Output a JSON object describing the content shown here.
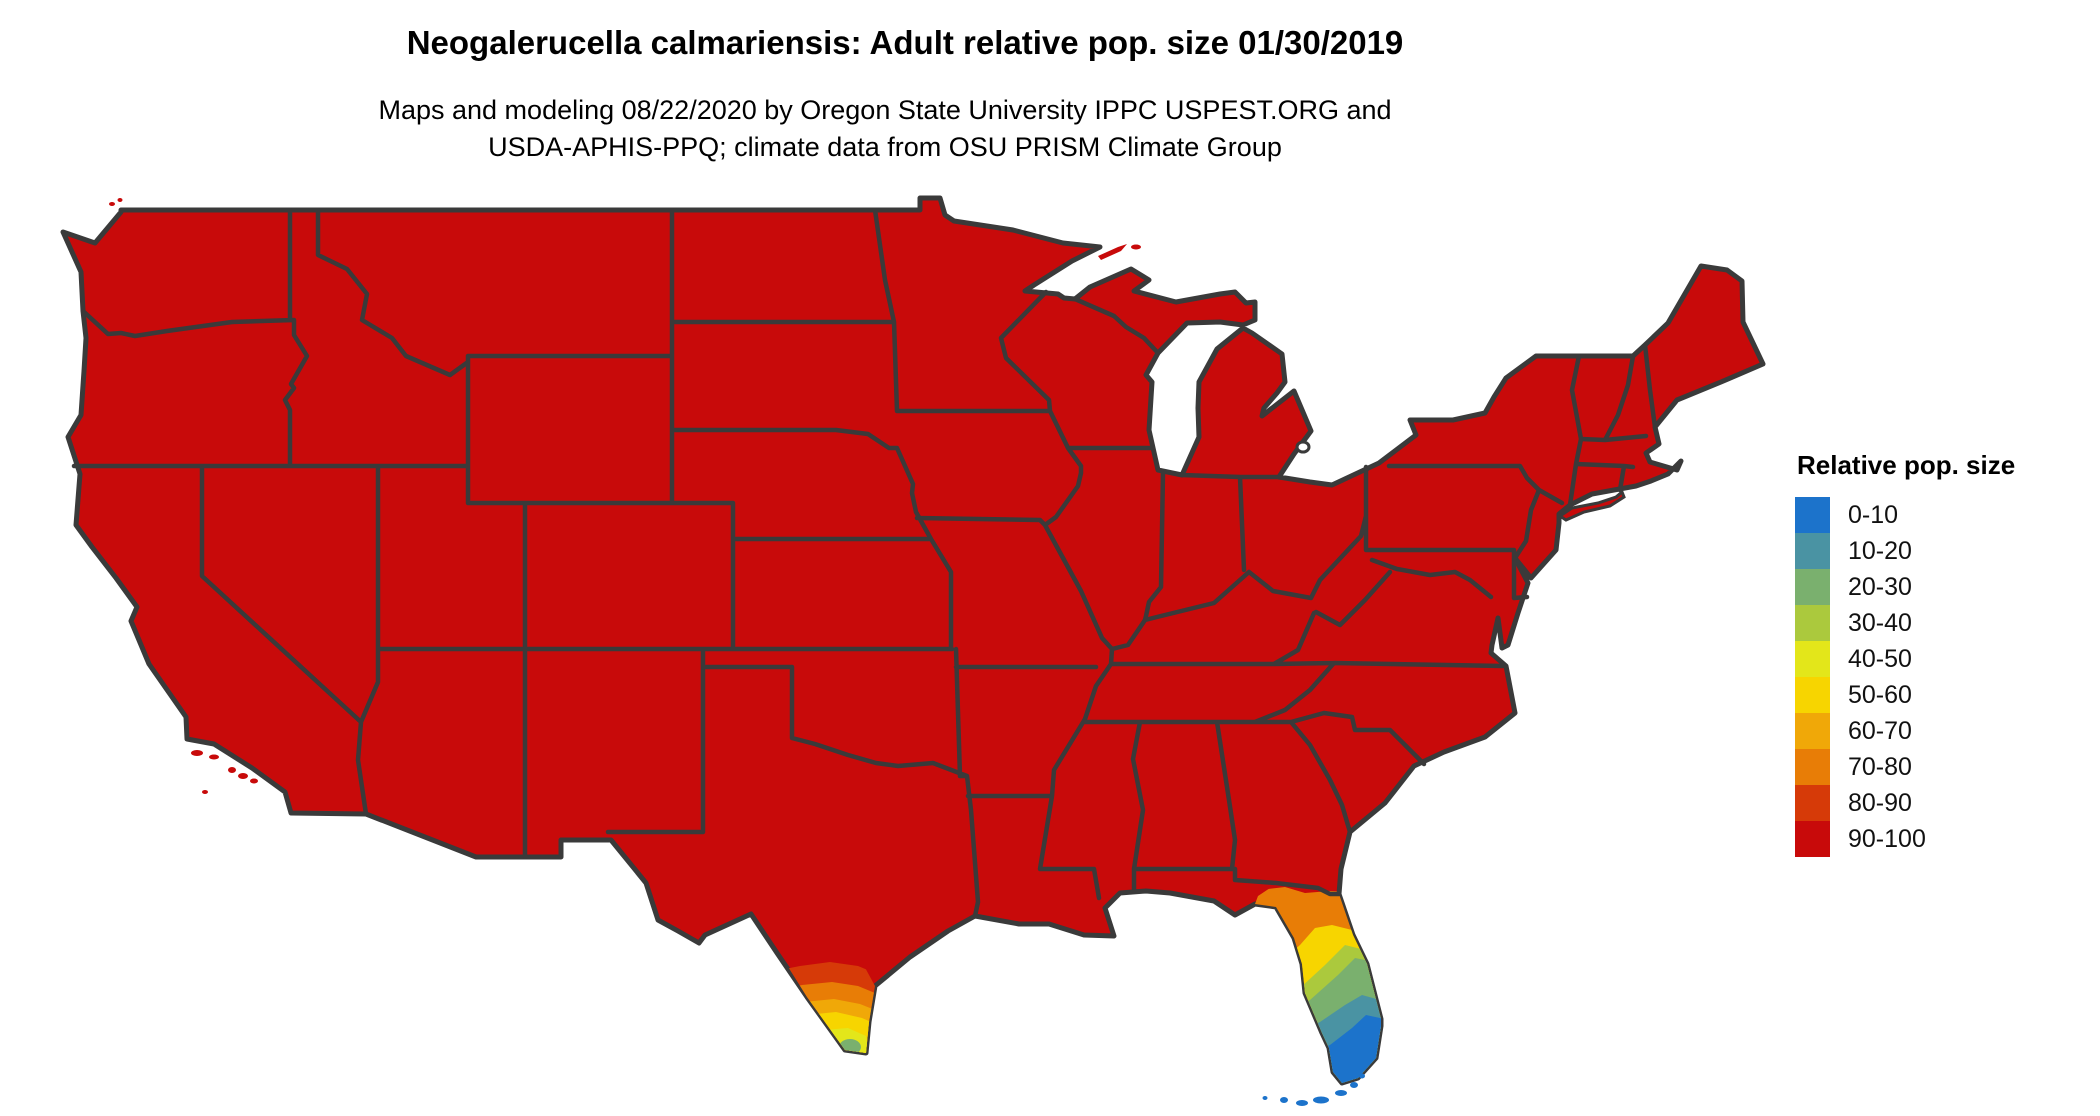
{
  "header": {
    "title": "Neogalerucella calmariensis: Adult relative pop. size 01/30/2019",
    "subtitle_line1": "Maps and modeling 08/22/2020 by Oregon State University IPPC USPEST.ORG and",
    "subtitle_line2": "USDA-APHIS-PPQ; climate data from OSU PRISM Climate Group"
  },
  "legend": {
    "title": "Relative pop. size",
    "items": [
      {
        "range": "0-10",
        "color": "#1c73cb"
      },
      {
        "range": "10-20",
        "color": "#4a93a3"
      },
      {
        "range": "20-30",
        "color": "#7ab06e"
      },
      {
        "range": "30-40",
        "color": "#abc93d"
      },
      {
        "range": "40-50",
        "color": "#e3e61a"
      },
      {
        "range": "50-60",
        "color": "#f7d500"
      },
      {
        "range": "60-70",
        "color": "#f0a808"
      },
      {
        "range": "70-80",
        "color": "#e87d06"
      },
      {
        "range": "80-90",
        "color": "#d63a08"
      },
      {
        "range": "90-100",
        "color": "#c80a0a"
      }
    ]
  },
  "map": {
    "border_color": "#3a3a3a",
    "background": "#ffffff",
    "palette": {
      "0-10": "#1c73cb",
      "10-20": "#4a93a3",
      "20-30": "#7ab06e",
      "30-40": "#abc93d",
      "40-50": "#e3e61a",
      "50-60": "#f7d500",
      "60-70": "#f0a808",
      "70-80": "#e87d06",
      "80-90": "#d63a08",
      "90-100": "#c80a0a",
      "water": "#ffffff"
    },
    "regions_note": {
      "dominant": "90-100 over nearly all contiguous US",
      "florida_gradient": [
        "70-80",
        "50-60",
        "30-40",
        "20-30",
        "10-20",
        "0-10"
      ],
      "south_texas_gradient": [
        "80-90",
        "70-80",
        "60-70",
        "50-60",
        "40-50",
        "20-30"
      ]
    }
  }
}
